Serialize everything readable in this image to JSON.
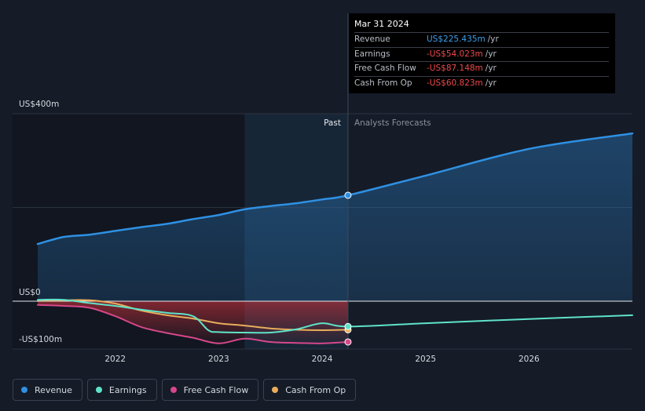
{
  "tooltip": {
    "date": "Mar 31 2024",
    "rows": [
      {
        "label": "Revenue",
        "value": "US$225.435m",
        "unit": "/yr",
        "color": "#3e9fe8"
      },
      {
        "label": "Earnings",
        "value": "-US$54.023m",
        "unit": "/yr",
        "color": "#f0484b"
      },
      {
        "label": "Free Cash Flow",
        "value": "-US$87.148m",
        "unit": "/yr",
        "color": "#f0484b"
      },
      {
        "label": "Cash From Op",
        "value": "-US$60.823m",
        "unit": "/yr",
        "color": "#f0484b"
      }
    ]
  },
  "legend": [
    {
      "label": "Revenue",
      "color": "#2f90e2"
    },
    {
      "label": "Earnings",
      "color": "#5ee3c9"
    },
    {
      "label": "Free Cash Flow",
      "color": "#d6478b"
    },
    {
      "label": "Cash From Op",
      "color": "#e8ad5c"
    }
  ],
  "chart_data": {
    "type": "line",
    "y_tick_labels": [
      "US$400m",
      "US$0",
      "-US$100m"
    ],
    "x_tick_labels": [
      "2022",
      "2023",
      "2024",
      "2025",
      "2026"
    ],
    "x_ticks": [
      2022,
      2023,
      2024,
      2025,
      2026
    ],
    "xlim": [
      2021.25,
      2027.0
    ],
    "ylim": [
      -100,
      400
    ],
    "period_labels": {
      "past": "Past",
      "forecast": "Analysts Forecasts"
    },
    "past_end": 2024.25,
    "highlight_start": 2023.25,
    "series": [
      {
        "name": "Revenue",
        "color": "#2f90e2",
        "x": [
          2021.25,
          2021.5,
          2021.75,
          2022.0,
          2022.25,
          2022.5,
          2022.75,
          2023.0,
          2023.25,
          2023.5,
          2023.75,
          2024.0,
          2024.25,
          2025.0,
          2026.0,
          2027.0
        ],
        "y": [
          122,
          137,
          142,
          150,
          158,
          165,
          175,
          184,
          196,
          203,
          209,
          217,
          226,
          268,
          325,
          358
        ]
      },
      {
        "name": "Earnings",
        "color": "#5ee3c9",
        "x": [
          2021.25,
          2021.5,
          2021.75,
          2022.0,
          2022.25,
          2022.5,
          2022.75,
          2022.9,
          2023.0,
          2023.25,
          2023.5,
          2023.75,
          2024.0,
          2024.25,
          2025.0,
          2026.0,
          2027.0
        ],
        "y": [
          3,
          3,
          -4,
          -10,
          -18,
          -25,
          -32,
          -62,
          -66,
          -67,
          -67,
          -60,
          -47,
          -54,
          -47,
          -38,
          -30
        ]
      },
      {
        "name": "Free Cash Flow",
        "color": "#d6478b",
        "x": [
          2021.25,
          2021.5,
          2021.75,
          2022.0,
          2022.25,
          2022.5,
          2022.75,
          2023.0,
          2023.25,
          2023.5,
          2023.75,
          2024.0,
          2024.25
        ],
        "y": [
          -8,
          -10,
          -14,
          -32,
          -55,
          -68,
          -78,
          -90,
          -80,
          -87,
          -89,
          -90,
          -87
        ]
      },
      {
        "name": "Cash From Op",
        "color": "#e8ad5c",
        "x": [
          2021.25,
          2021.5,
          2021.75,
          2022.0,
          2022.25,
          2022.5,
          2022.75,
          2023.0,
          2023.25,
          2023.5,
          2023.75,
          2024.0,
          2024.25
        ],
        "y": [
          2,
          2,
          2,
          -5,
          -20,
          -30,
          -37,
          -47,
          -52,
          -58,
          -61,
          -62,
          -61
        ]
      }
    ]
  }
}
